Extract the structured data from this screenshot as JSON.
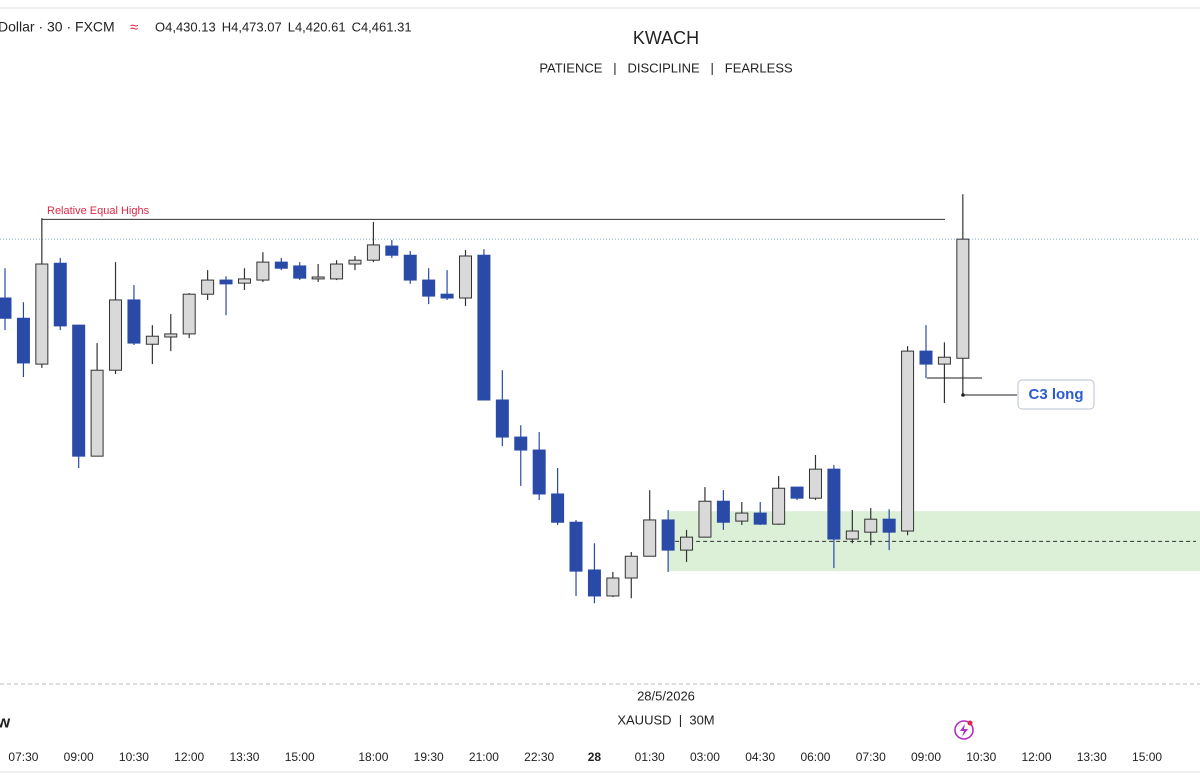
{
  "header": {
    "symbol": "Dollar · 30 · FXCM",
    "ohlc_text": [
      "O4,430.13",
      "H4,473.07",
      "L4,420.61",
      "C4,461.31"
    ],
    "corner_text": "w"
  },
  "chart_data": {
    "type": "candlestick",
    "title": "KWACH",
    "subtitle": "PATIENCE   |   DISCIPLINE   |   FEARLESS",
    "date_label": "28/5/2026",
    "symbol_label": "XAUUSD  |  30M",
    "annotation": "Relative Equal Highs",
    "level": 4466.5,
    "signal": "C3 long",
    "zone": {
      "high": 4390.1,
      "low": 4374.4,
      "mid": 4382.2
    },
    "up_color": "#d9d9d9",
    "down_color": "#2a4aa8",
    "ylim": [
      4345.9,
      4521.3
    ],
    "categories": [
      null,
      "07:30",
      null,
      null,
      "09:00",
      null,
      null,
      "10:30",
      null,
      null,
      "12:00",
      null,
      null,
      "13:30",
      null,
      null,
      "15:00",
      null,
      null,
      null,
      "18:00",
      null,
      null,
      "19:30",
      null,
      null,
      "21:00",
      null,
      null,
      "22:30",
      null,
      null,
      "28",
      null,
      null,
      "01:30",
      null,
      null,
      "03:00",
      null,
      null,
      "04:30",
      null,
      null,
      "06:00",
      null,
      null,
      "07:30",
      null,
      null,
      "09:00",
      null,
      null,
      "10:30",
      null,
      null,
      "12:00",
      null,
      null,
      "13:30",
      null,
      null,
      "15:00",
      null,
      null
    ],
    "open": [
      4445.9,
      4440.6,
      4428.6,
      4455.0,
      4438.8,
      4404.5,
      4427.0,
      4445.4,
      4433.8,
      4435.7,
      4436.5,
      4446.9,
      4450.6,
      4449.8,
      4450.6,
      4455.3,
      4454.3,
      4450.9,
      4450.9,
      4454.8,
      4455.8,
      4459.5,
      4457.1,
      4450.6,
      4446.9,
      4445.9,
      4457.1,
      4419.2,
      4409.5,
      4406.1,
      4394.6,
      4387.2,
      4374.7,
      4367.9,
      4372.6,
      4378.3,
      4387.8,
      4379.9,
      4383.3,
      4392.7,
      4387.5,
      4389.6,
      4386.7,
      4396.4,
      4393.5,
      4401.1,
      4382.8,
      4384.6,
      4388.0,
      4384.9,
      4432.0,
      4428.6,
      4430.13,
      null,
      null,
      null,
      null,
      null,
      null,
      null,
      null,
      null,
      null,
      null,
      null
    ],
    "high": [
      4453.7,
      4444.8,
      4466.8,
      4456.4,
      4438.8,
      4434.1,
      4455.3,
      4449.3,
      4438.8,
      4441.7,
      4447.2,
      4453.2,
      4451.6,
      4453.7,
      4457.9,
      4456.4,
      4455.3,
      4454.8,
      4455.8,
      4456.9,
      4465.8,
      4461.1,
      4458.2,
      4453.7,
      4453.2,
      4458.5,
      4458.7,
      4427.0,
      4412.6,
      4410.8,
      4401.4,
      4387.8,
      4381.7,
      4374.2,
      4379.4,
      4395.6,
      4390.4,
      4385.2,
      4396.4,
      4395.6,
      4392.5,
      4392.5,
      4399.3,
      4396.4,
      4404.8,
      4402.2,
      4390.4,
      4390.9,
      4390.6,
      4433.3,
      4438.8,
      4434.3,
      4473.07,
      null,
      null,
      null,
      null,
      null,
      null,
      null,
      null,
      null,
      null,
      null,
      null
    ],
    "low": [
      4437.5,
      4425.2,
      4427.6,
      4437.5,
      4401.4,
      4404.5,
      4426.0,
      4433.6,
      4428.6,
      4432.0,
      4435.4,
      4445.4,
      4441.4,
      4448.0,
      4450.1,
      4453.2,
      4450.6,
      4450.1,
      4450.6,
      4453.2,
      4455.3,
      4456.4,
      4449.6,
      4444.3,
      4445.4,
      4443.8,
      4419.2,
      4407.1,
      4396.7,
      4393.0,
      4386.5,
      4367.9,
      4366.0,
      4367.6,
      4367.3,
      4378.3,
      4374.2,
      4376.8,
      4383.3,
      4385.2,
      4386.5,
      4386.5,
      4386.5,
      4393.0,
      4393.0,
      4375.2,
      4381.7,
      4381.2,
      4379.9,
      4383.8,
      4424.9,
      4418.4,
      4420.61,
      null,
      null,
      null,
      null,
      null,
      null,
      null,
      null,
      null,
      null,
      null,
      null
    ],
    "close": [
      4440.6,
      4428.9,
      4454.8,
      4438.6,
      4404.5,
      4427.0,
      4445.4,
      4434.1,
      4435.9,
      4436.5,
      4446.9,
      4450.6,
      4449.6,
      4450.9,
      4455.3,
      4453.7,
      4451.1,
      4451.4,
      4454.8,
      4455.8,
      4459.8,
      4457.1,
      4450.6,
      4446.4,
      4445.9,
      4456.9,
      4419.2,
      4409.5,
      4406.1,
      4394.6,
      4387.2,
      4374.4,
      4367.9,
      4372.6,
      4378.3,
      4387.8,
      4379.9,
      4383.3,
      4392.7,
      4387.2,
      4389.6,
      4386.7,
      4396.1,
      4393.5,
      4401.1,
      4382.8,
      4384.9,
      4388.0,
      4384.6,
      4432.0,
      4428.6,
      4430.4,
      4461.31,
      null,
      null,
      null,
      null,
      null,
      null,
      null,
      null,
      null,
      null,
      null,
      null
    ]
  }
}
